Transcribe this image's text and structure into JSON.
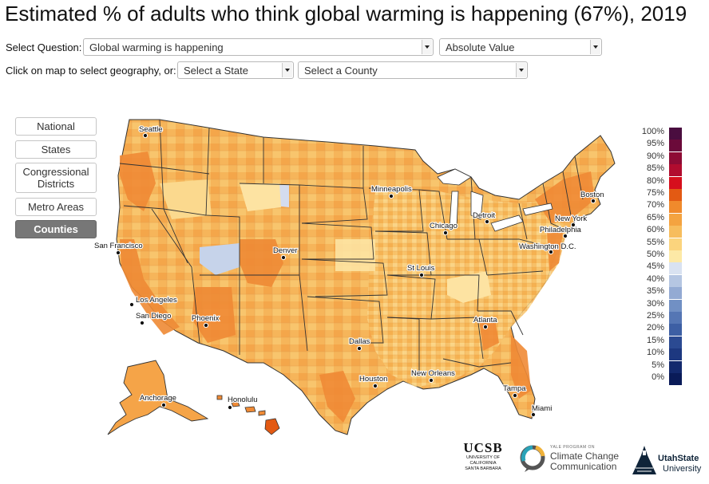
{
  "title": "Estimated % of adults who think global warming is happening (67%), 2019",
  "controls": {
    "question_label": "Select Question:",
    "question_value": "Global warming is happening",
    "measure_value": "Absolute Value",
    "geo_label": "Click on map to select geography, or:",
    "state_value": "Select a State",
    "county_value": "Select a County"
  },
  "geography_buttons": [
    {
      "label": "National",
      "active": false
    },
    {
      "label": "States",
      "active": false
    },
    {
      "label": "Congressional Districts",
      "active": false
    },
    {
      "label": "Metro Areas",
      "active": false
    },
    {
      "label": "Counties",
      "active": true
    }
  ],
  "legend": {
    "stops": [
      {
        "label": "100%",
        "color": "#4a0d3f"
      },
      {
        "label": "95%",
        "color": "#6b0a3a"
      },
      {
        "label": "90%",
        "color": "#8e0b35"
      },
      {
        "label": "85%",
        "color": "#b10c2f"
      },
      {
        "label": "80%",
        "color": "#d60f1d"
      },
      {
        "label": "75%",
        "color": "#e35a13"
      },
      {
        "label": "70%",
        "color": "#f08a2c"
      },
      {
        "label": "65%",
        "color": "#f4a340"
      },
      {
        "label": "60%",
        "color": "#f7bd5d"
      },
      {
        "label": "55%",
        "color": "#fbd47d"
      },
      {
        "label": "50%",
        "color": "#fde9a6"
      },
      {
        "label": "45%",
        "color": "#d9e2f1"
      },
      {
        "label": "40%",
        "color": "#b5c6e2"
      },
      {
        "label": "35%",
        "color": "#93aad3"
      },
      {
        "label": "30%",
        "color": "#7190c4"
      },
      {
        "label": "25%",
        "color": "#5576b4"
      },
      {
        "label": "20%",
        "color": "#3d5fa4"
      },
      {
        "label": "15%",
        "color": "#2b4a92"
      },
      {
        "label": "10%",
        "color": "#1d3880"
      },
      {
        "label": "5%",
        "color": "#13296d"
      },
      {
        "label": "0%",
        "color": "#0a1b58"
      }
    ]
  },
  "map": {
    "cities": [
      "Seattle",
      "San Francisco",
      "Los Angeles",
      "San Diego",
      "Phoenix",
      "Denver",
      "Minneapolis",
      "Chicago",
      "Detroit",
      "St Louis",
      "Dallas",
      "Houston",
      "New Orleans",
      "Atlanta",
      "Tampa",
      "Miami",
      "Washington D.C.",
      "Philadelphia",
      "New York",
      "Boston",
      "Anchorage",
      "Honolulu"
    ],
    "colors": {
      "land": "#f6b55a",
      "high": "#ef8a35",
      "low": "#fde3a2",
      "blue": "#c6d3ea",
      "border": "#333333"
    }
  },
  "logos": {
    "ucsb": "UCSB",
    "ucsb_sub1": "UNIVERSITY OF CALIFORNIA",
    "ucsb_sub2": "SANTA BARBARA",
    "yale_small": "YALE PROGRAM ON",
    "yale_line1": "Climate Change",
    "yale_line2": "Communication",
    "usu_line1": "UtahState",
    "usu_line2": "University"
  }
}
